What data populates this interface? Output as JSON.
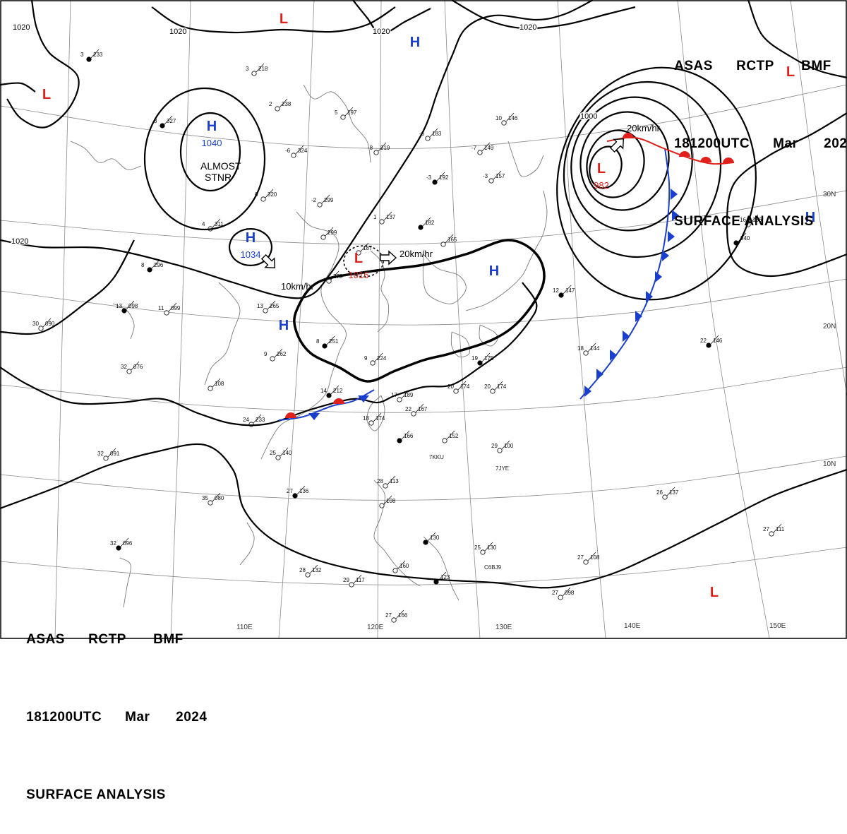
{
  "header": {
    "agency": "ASAS",
    "station": "RCTP",
    "office": "BMF",
    "time": "181200UTC",
    "month": "Mar",
    "year": "2024",
    "product": "SURFACE ANALYSIS"
  },
  "colors": {
    "background": "#ffffff",
    "isobar": "#000000",
    "grid": "#8a8a8a",
    "coast": "#7a7a7a",
    "high_center": "#1a3fcf",
    "low_center": "#e0201a",
    "warm_front": "#e0201a",
    "cold_front": "#1a3fcf"
  },
  "grid_labels": {
    "longitude": [
      "110E",
      "120E",
      "130E",
      "140E",
      "150E"
    ],
    "latitude": [
      "30N",
      "20N",
      "10N"
    ]
  },
  "isobar_labels": [
    "1020",
    "1020",
    "1020",
    "1020",
    "1020",
    "1000"
  ],
  "pressure_centers": [
    {
      "type": "H",
      "value": "1040",
      "note": "ALMOST STNR"
    },
    {
      "type": "H",
      "value": "1034",
      "motion": "10km/hr"
    },
    {
      "type": "H",
      "value": ""
    },
    {
      "type": "H",
      "value": ""
    },
    {
      "type": "H",
      "value": ""
    },
    {
      "type": "H",
      "value": ""
    },
    {
      "type": "L",
      "value": "1016",
      "motion": "20km/hr"
    },
    {
      "type": "L",
      "value": "982",
      "motion": "20km/hr"
    },
    {
      "type": "L",
      "value": ""
    },
    {
      "type": "L",
      "value": ""
    },
    {
      "type": "L",
      "value": ""
    },
    {
      "type": "L",
      "value": ""
    }
  ],
  "station_labels": [
    "7KKU",
    "7JYE",
    "C6BJ9"
  ],
  "station_plots": [
    {
      "t": "3",
      "p": "233"
    },
    {
      "t": "3",
      "p": "218"
    },
    {
      "t": "2",
      "p": "238"
    },
    {
      "t": "5",
      "p": "197"
    },
    {
      "t": "3",
      "p": "327"
    },
    {
      "t": "-6",
      "p": "324"
    },
    {
      "t": "-8",
      "p": "219"
    },
    {
      "t": "-6",
      "p": "183"
    },
    {
      "t": "-3",
      "p": "192"
    },
    {
      "t": "-7",
      "p": "149"
    },
    {
      "t": "-3",
      "p": "157"
    },
    {
      "t": "10",
      "p": "146"
    },
    {
      "t": "12",
      "p": "147"
    },
    {
      "t": "0",
      "p": "320"
    },
    {
      "t": "-2",
      "p": "299"
    },
    {
      "t": "1",
      "p": "137"
    },
    {
      "t": "",
      "p": "182"
    },
    {
      "t": "",
      "p": "165"
    },
    {
      "t": "4",
      "p": "311"
    },
    {
      "t": "",
      "p": "299"
    },
    {
      "t": "8",
      "p": "296"
    },
    {
      "t": "13",
      "p": "265"
    },
    {
      "t": "",
      "p": "278"
    },
    {
      "t": "",
      "p": "187"
    },
    {
      "t": "8",
      "p": "251"
    },
    {
      "t": "9",
      "p": "224"
    },
    {
      "t": "9",
      "p": "262"
    },
    {
      "t": "11",
      "p": "099"
    },
    {
      "t": "13",
      "p": "098"
    },
    {
      "t": "30",
      "p": "090"
    },
    {
      "t": "32",
      "p": "076"
    },
    {
      "t": "",
      "p": "108"
    },
    {
      "t": "14",
      "p": "212"
    },
    {
      "t": "17",
      "p": "189"
    },
    {
      "t": "22",
      "p": "167"
    },
    {
      "t": "18",
      "p": "174"
    },
    {
      "t": "19",
      "p": "175"
    },
    {
      "t": "20",
      "p": "174"
    },
    {
      "t": "20",
      "p": "174"
    },
    {
      "t": "18",
      "p": "144"
    },
    {
      "t": "22",
      "p": "146"
    },
    {
      "t": "16",
      "p": "156"
    },
    {
      "t": "24",
      "p": "233"
    },
    {
      "t": "25",
      "p": "140"
    },
    {
      "t": "",
      "p": "166"
    },
    {
      "t": "",
      "p": "152"
    },
    {
      "t": "29",
      "p": "100"
    },
    {
      "t": "32",
      "p": "091"
    },
    {
      "t": "27",
      "p": "136"
    },
    {
      "t": "35",
      "p": "080"
    },
    {
      "t": "28",
      "p": "113"
    },
    {
      "t": "",
      "p": "108"
    },
    {
      "t": "",
      "p": "130"
    },
    {
      "t": "25",
      "p": "130"
    },
    {
      "t": "26",
      "p": "137"
    },
    {
      "t": "27",
      "p": "111"
    },
    {
      "t": "32",
      "p": "096"
    },
    {
      "t": "28",
      "p": "132"
    },
    {
      "t": "29",
      "p": "117"
    },
    {
      "t": "",
      "p": "160"
    },
    {
      "t": "",
      "p": "123"
    },
    {
      "t": "27",
      "p": "108"
    },
    {
      "t": "27",
      "p": "098"
    },
    {
      "t": "27",
      "p": "166"
    },
    {
      "t": "",
      "p": "940"
    }
  ]
}
